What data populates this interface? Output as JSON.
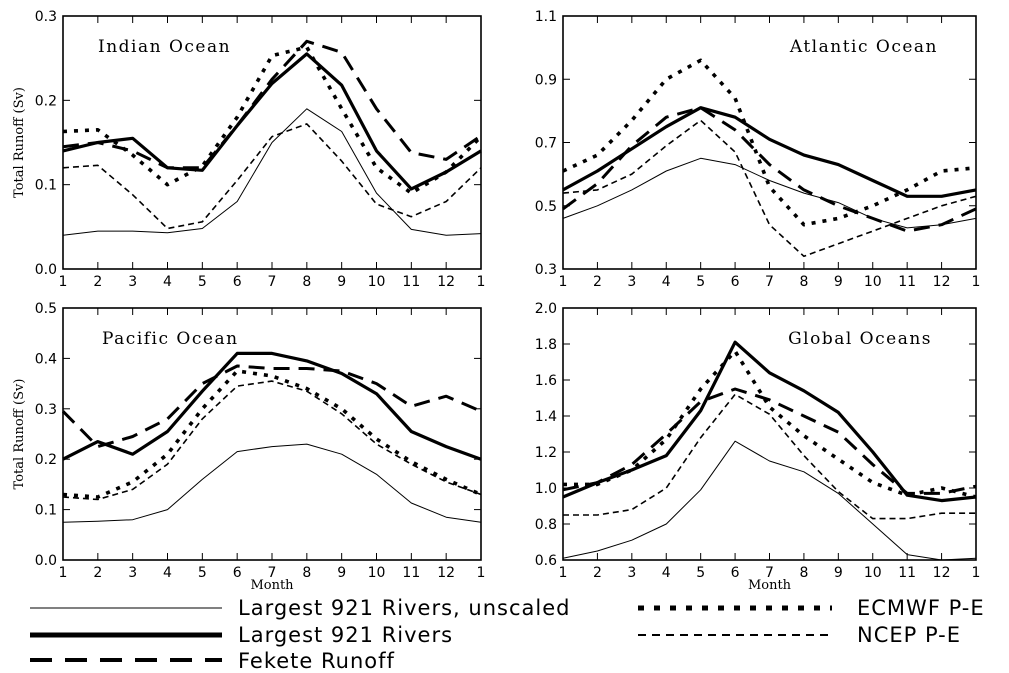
{
  "chart_data": [
    {
      "type": "line",
      "title": "Indian Ocean",
      "ylabel": "Total Runoff (Sv)",
      "xlabel": "",
      "x": [
        1,
        2,
        3,
        4,
        5,
        6,
        7,
        8,
        9,
        10,
        11,
        12,
        13
      ],
      "x_tick_labels": [
        "1",
        "2",
        "3",
        "4",
        "5",
        "6",
        "7",
        "8",
        "9",
        "10",
        "11",
        "12",
        "1"
      ],
      "ylim": [
        0.0,
        0.3
      ],
      "y_ticks": [
        "0.0",
        "0.1",
        "0.2",
        "0.3"
      ],
      "series": [
        {
          "name": "Largest 921 Rivers, unscaled",
          "values": [
            0.04,
            0.045,
            0.045,
            0.043,
            0.048,
            0.08,
            0.15,
            0.19,
            0.163,
            0.09,
            0.047,
            0.04,
            0.042
          ]
        },
        {
          "name": "Largest 921 Rivers",
          "values": [
            0.14,
            0.15,
            0.155,
            0.12,
            0.117,
            0.17,
            0.22,
            0.255,
            0.218,
            0.14,
            0.095,
            0.115,
            0.14
          ]
        },
        {
          "name": "Fekete Runoff",
          "values": [
            0.145,
            0.15,
            0.14,
            0.12,
            0.12,
            0.17,
            0.225,
            0.27,
            0.257,
            0.19,
            0.138,
            0.13,
            0.158
          ]
        },
        {
          "name": "ECMWF P-E",
          "values": [
            0.163,
            0.165,
            0.135,
            0.1,
            0.122,
            0.18,
            0.253,
            0.263,
            0.19,
            0.12,
            0.09,
            0.115,
            0.157
          ]
        },
        {
          "name": "NCEP P-E",
          "values": [
            0.12,
            0.123,
            0.088,
            0.048,
            0.056,
            0.105,
            0.157,
            0.172,
            0.128,
            0.077,
            0.062,
            0.08,
            0.12
          ]
        }
      ]
    },
    {
      "type": "line",
      "title": "Atlantic Ocean",
      "ylabel": "",
      "xlabel": "",
      "x": [
        1,
        2,
        3,
        4,
        5,
        6,
        7,
        8,
        9,
        10,
        11,
        12,
        13
      ],
      "x_tick_labels": [
        "1",
        "2",
        "3",
        "4",
        "5",
        "6",
        "7",
        "8",
        "9",
        "10",
        "11",
        "12",
        "1"
      ],
      "ylim": [
        0.3,
        1.1
      ],
      "y_ticks": [
        "0.3",
        "0.5",
        "0.7",
        "0.9",
        "1.1"
      ],
      "series": [
        {
          "name": "Largest 921 Rivers, unscaled",
          "values": [
            0.46,
            0.5,
            0.55,
            0.61,
            0.65,
            0.63,
            0.58,
            0.54,
            0.51,
            0.46,
            0.43,
            0.44,
            0.46
          ]
        },
        {
          "name": "Largest 921 Rivers",
          "values": [
            0.55,
            0.61,
            0.68,
            0.75,
            0.81,
            0.78,
            0.71,
            0.66,
            0.63,
            0.58,
            0.53,
            0.53,
            0.55
          ]
        },
        {
          "name": "Fekete Runoff",
          "values": [
            0.49,
            0.57,
            0.69,
            0.78,
            0.81,
            0.74,
            0.63,
            0.55,
            0.5,
            0.46,
            0.42,
            0.44,
            0.49
          ]
        },
        {
          "name": "ECMWF P-E",
          "values": [
            0.61,
            0.66,
            0.77,
            0.9,
            0.96,
            0.84,
            0.56,
            0.44,
            0.46,
            0.5,
            0.55,
            0.61,
            0.62
          ]
        },
        {
          "name": "NCEP P-E",
          "values": [
            0.54,
            0.55,
            0.6,
            0.69,
            0.77,
            0.67,
            0.44,
            0.34,
            0.38,
            0.42,
            0.46,
            0.5,
            0.53
          ]
        }
      ]
    },
    {
      "type": "line",
      "title": "Pacific Ocean",
      "ylabel": "Total Runoff (Sv)",
      "xlabel": "Month",
      "x": [
        1,
        2,
        3,
        4,
        5,
        6,
        7,
        8,
        9,
        10,
        11,
        12,
        13
      ],
      "x_tick_labels": [
        "1",
        "2",
        "3",
        "4",
        "5",
        "6",
        "7",
        "8",
        "9",
        "10",
        "11",
        "12",
        "1"
      ],
      "ylim": [
        0.0,
        0.5
      ],
      "y_ticks": [
        "0.0",
        "0.1",
        "0.2",
        "0.3",
        "0.4",
        "0.5"
      ],
      "series": [
        {
          "name": "Largest 921 Rivers, unscaled",
          "values": [
            0.075,
            0.077,
            0.08,
            0.1,
            0.16,
            0.215,
            0.225,
            0.23,
            0.21,
            0.17,
            0.113,
            0.085,
            0.075
          ]
        },
        {
          "name": "Largest 921 Rivers",
          "values": [
            0.2,
            0.235,
            0.21,
            0.255,
            0.335,
            0.41,
            0.41,
            0.395,
            0.37,
            0.33,
            0.255,
            0.225,
            0.2
          ]
        },
        {
          "name": "Fekete Runoff",
          "values": [
            0.295,
            0.225,
            0.245,
            0.28,
            0.35,
            0.385,
            0.38,
            0.38,
            0.375,
            0.35,
            0.305,
            0.325,
            0.295
          ]
        },
        {
          "name": "ECMWF P-E",
          "values": [
            0.13,
            0.125,
            0.155,
            0.21,
            0.3,
            0.375,
            0.365,
            0.34,
            0.3,
            0.24,
            0.195,
            0.16,
            0.13
          ]
        },
        {
          "name": "NCEP P-E",
          "values": [
            0.125,
            0.12,
            0.14,
            0.19,
            0.28,
            0.345,
            0.355,
            0.335,
            0.29,
            0.23,
            0.19,
            0.155,
            0.13
          ]
        }
      ]
    },
    {
      "type": "line",
      "title": "Global Oceans",
      "ylabel": "",
      "xlabel": "Month",
      "x": [
        1,
        2,
        3,
        4,
        5,
        6,
        7,
        8,
        9,
        10,
        11,
        12,
        13
      ],
      "x_tick_labels": [
        "1",
        "2",
        "3",
        "4",
        "5",
        "6",
        "7",
        "8",
        "9",
        "10",
        "11",
        "12",
        "1"
      ],
      "ylim": [
        0.6,
        2.0
      ],
      "y_ticks": [
        "0.6",
        "0.8",
        "1.0",
        "1.2",
        "1.4",
        "1.6",
        "1.8",
        "2.0"
      ],
      "series": [
        {
          "name": "Largest 921 Rivers, unscaled",
          "values": [
            0.61,
            0.65,
            0.71,
            0.8,
            0.99,
            1.26,
            1.15,
            1.09,
            0.97,
            0.8,
            0.63,
            0.6,
            0.61
          ]
        },
        {
          "name": "Largest 921 Rivers",
          "values": [
            0.95,
            1.03,
            1.1,
            1.18,
            1.43,
            1.81,
            1.64,
            1.54,
            1.42,
            1.2,
            0.96,
            0.93,
            0.95
          ]
        },
        {
          "name": "Fekete Runoff",
          "values": [
            0.99,
            1.03,
            1.13,
            1.3,
            1.48,
            1.55,
            1.49,
            1.4,
            1.31,
            1.13,
            0.97,
            0.97,
            1.01
          ]
        },
        {
          "name": "ECMWF P-E",
          "values": [
            1.02,
            1.02,
            1.1,
            1.27,
            1.55,
            1.76,
            1.45,
            1.29,
            1.16,
            1.03,
            0.96,
            1.0,
            0.95
          ]
        },
        {
          "name": "NCEP P-E",
          "values": [
            0.85,
            0.85,
            0.88,
            1.0,
            1.28,
            1.52,
            1.41,
            1.18,
            0.98,
            0.83,
            0.83,
            0.86,
            0.86
          ]
        }
      ]
    }
  ],
  "legend": [
    {
      "label": "Largest 921 Rivers, unscaled",
      "style": "thin-solid"
    },
    {
      "label": "Largest 921 Rivers",
      "style": "thick-solid"
    },
    {
      "label": "Fekete Runoff",
      "style": "long-dash"
    },
    {
      "label": "ECMWF P-E",
      "style": "thick-dot"
    },
    {
      "label": "NCEP P-E",
      "style": "thin-dash"
    }
  ],
  "colors": {
    "lines": "#000000",
    "background": "#ffffff"
  }
}
